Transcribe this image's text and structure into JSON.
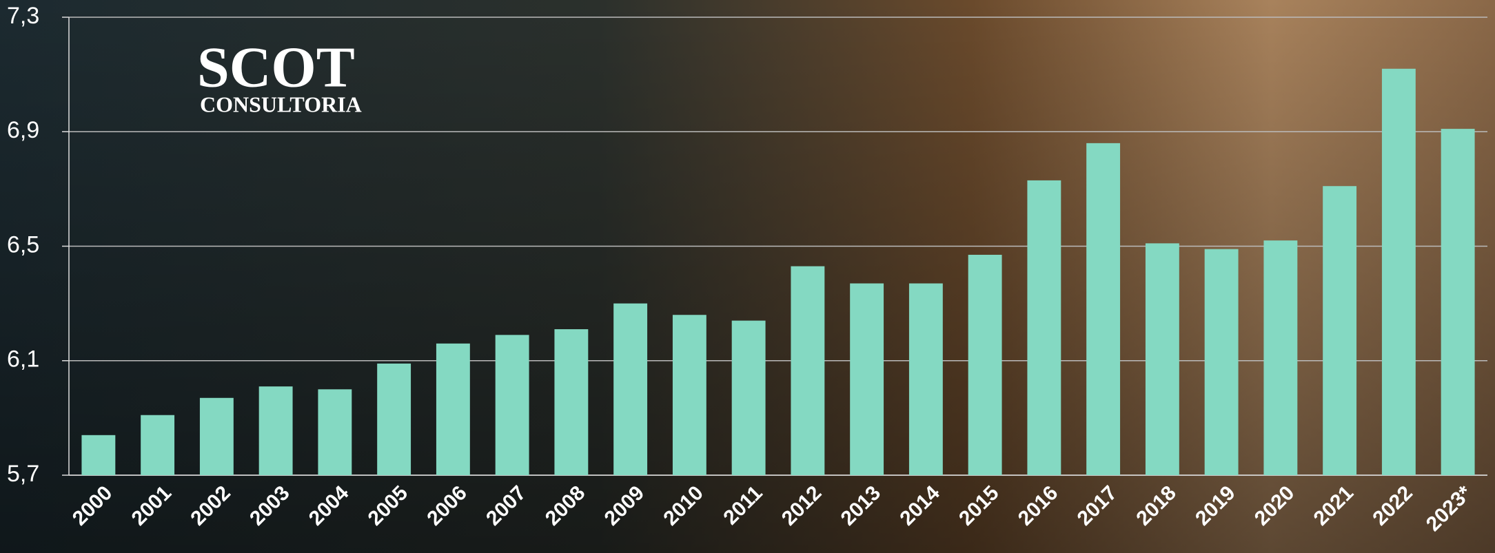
{
  "chart_data": {
    "type": "bar",
    "categories": [
      "2000",
      "2001",
      "2002",
      "2003",
      "2004",
      "2005",
      "2006",
      "2007",
      "2008",
      "2009",
      "2010",
      "2011",
      "2012",
      "2013",
      "2014",
      "2015",
      "2016",
      "2017",
      "2018",
      "2019",
      "2020",
      "2021",
      "2022",
      "2023*"
    ],
    "values": [
      5.84,
      5.91,
      5.97,
      6.01,
      6.0,
      6.09,
      6.16,
      6.19,
      6.21,
      6.3,
      6.26,
      6.24,
      6.43,
      6.37,
      6.37,
      6.47,
      6.73,
      6.86,
      6.51,
      6.49,
      6.52,
      6.71,
      7.12,
      6.91
    ],
    "color": "#84d9c2",
    "ylim": [
      5.7,
      7.3
    ],
    "yticks": [
      {
        "value": 5.7,
        "label": "5,7"
      },
      {
        "value": 6.1,
        "label": "6,1"
      },
      {
        "value": 6.5,
        "label": "6,5"
      },
      {
        "value": 6.9,
        "label": "6,9"
      },
      {
        "value": 7.3,
        "label": "7,3"
      }
    ],
    "grid": true
  },
  "logo": {
    "title": "SCOT",
    "subtitle": "CONSULTORIA"
  }
}
